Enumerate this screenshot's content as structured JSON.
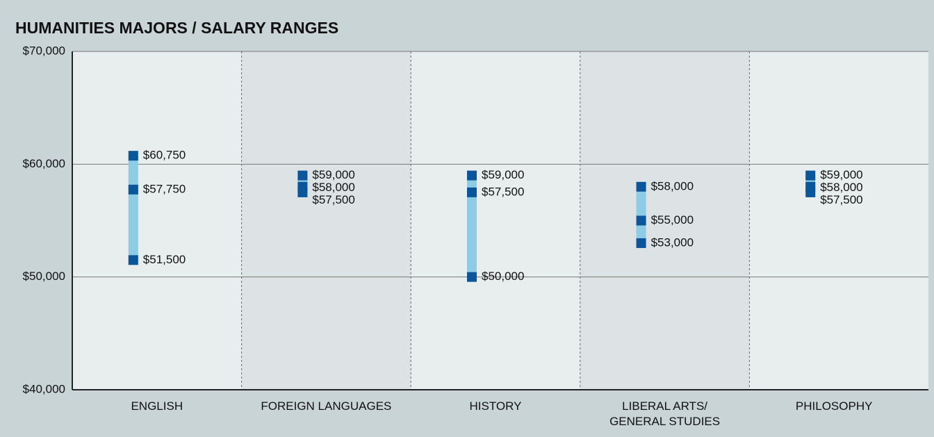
{
  "chart_data": {
    "type": "range",
    "title": "HUMANITIES MAJORS / SALARY RANGES",
    "categories": [
      "ENGLISH",
      "FOREIGN LANGUAGES",
      "HISTORY",
      "LIBERAL ARTS/\nGENERAL STUDIES",
      "PHILOSOPHY"
    ],
    "series": [
      {
        "color": "#0b569a",
        "values": [
          60750,
          59000,
          59000,
          58000,
          59000
        ],
        "value_labels": [
          "$60,750",
          "$59,000",
          "$59,000",
          "$58,000",
          "$59,000"
        ]
      },
      {
        "color": "#0b569a",
        "values": [
          57750,
          58000,
          57500,
          55000,
          58000
        ],
        "value_labels": [
          "$57,750",
          "$58,000",
          "$57,500",
          "$55,000",
          "$58,000"
        ]
      },
      {
        "color": "#0b569a",
        "values": [
          51500,
          57500,
          50000,
          53000,
          57500
        ],
        "value_labels": [
          "$51,500",
          "$57,500",
          "$50,000",
          "$53,000",
          "$57,500"
        ]
      }
    ],
    "range_color": "#8ecbe4",
    "ylim": [
      40000,
      70000
    ],
    "yticks": [
      {
        "value": 40000,
        "label": "$40,000"
      },
      {
        "value": 50000,
        "label": "$50,000"
      },
      {
        "value": 60000,
        "label": "$60,000"
      },
      {
        "value": 70000,
        "label": "$70,000"
      }
    ],
    "grid": true
  }
}
